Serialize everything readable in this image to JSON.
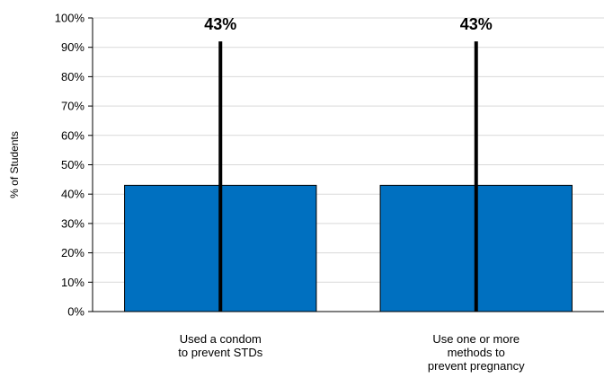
{
  "chart_data": {
    "type": "bar",
    "categories": [
      [
        "Used a condom",
        "to prevent STDs"
      ],
      [
        "Use one or more",
        "methods to",
        "prevent pregnancy"
      ]
    ],
    "values": [
      43,
      43
    ],
    "data_labels": [
      "43%",
      "43%"
    ],
    "error_bar_upper": [
      92,
      92
    ],
    "ylabel": "% of Students",
    "ylim": [
      0,
      100
    ],
    "yticks": [
      0,
      10,
      20,
      30,
      40,
      50,
      60,
      70,
      80,
      90,
      100
    ],
    "ytick_labels": [
      "0%",
      "10%",
      "20%",
      "30%",
      "40%",
      "50%",
      "60%",
      "70%",
      "80%",
      "90%",
      "100%"
    ],
    "grid": true,
    "legend": "none",
    "colors": {
      "bar": "#0070c0",
      "bar_stroke": "#000000",
      "error_line": "#000000",
      "grid": "#d9d9d9",
      "axis": "#000000"
    }
  }
}
